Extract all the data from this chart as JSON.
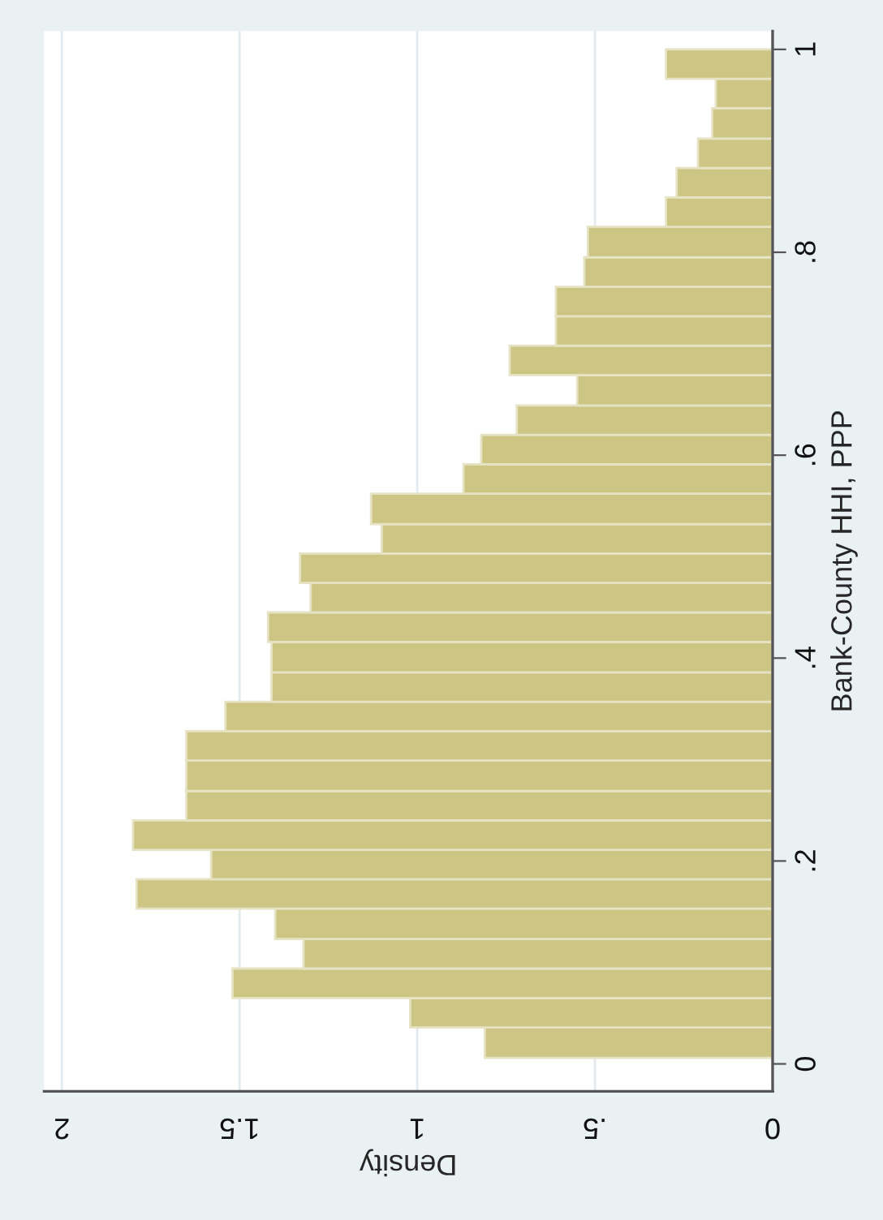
{
  "chart_data": {
    "type": "histogram",
    "orientation": "horizontal",
    "xlabel": "Density",
    "ylabel": "Bank-County HHI, PPP",
    "bins": [
      0.006,
      0.036,
      0.065,
      0.094,
      0.123,
      0.153,
      0.182,
      0.211,
      0.24,
      0.269,
      0.299,
      0.328,
      0.357,
      0.386,
      0.416,
      0.445,
      0.474,
      0.503,
      0.532,
      0.562,
      0.591,
      0.62,
      0.649,
      0.679,
      0.708,
      0.737,
      0.766,
      0.795,
      0.825,
      0.854,
      0.883,
      0.912,
      0.942,
      0.971,
      1.0
    ],
    "values": [
      0.81,
      1.02,
      1.52,
      1.32,
      1.4,
      1.79,
      1.58,
      1.8,
      1.65,
      1.65,
      1.65,
      1.54,
      1.41,
      1.41,
      1.42,
      1.3,
      1.33,
      1.1,
      1.13,
      0.87,
      0.82,
      0.72,
      0.55,
      0.74,
      0.61,
      0.61,
      0.53,
      0.52,
      0.3,
      0.27,
      0.21,
      0.17,
      0.16,
      0.3
    ],
    "color": "#cdc584",
    "xlim": [
      2.05,
      0
    ],
    "xticks": [
      0,
      {
        "value": 0.5,
        "label": ".5"
      },
      1,
      1.5,
      2
    ],
    "ylim": [
      -0.027,
      1.018
    ],
    "yticks": [
      0,
      {
        "value": 0.2,
        "label": ".2"
      },
      {
        "value": 0.4,
        "label": ".4"
      },
      {
        "value": 0.6,
        "label": ".6"
      },
      {
        "value": 0.8,
        "label": ".8"
      },
      1
    ],
    "grid": "x"
  }
}
